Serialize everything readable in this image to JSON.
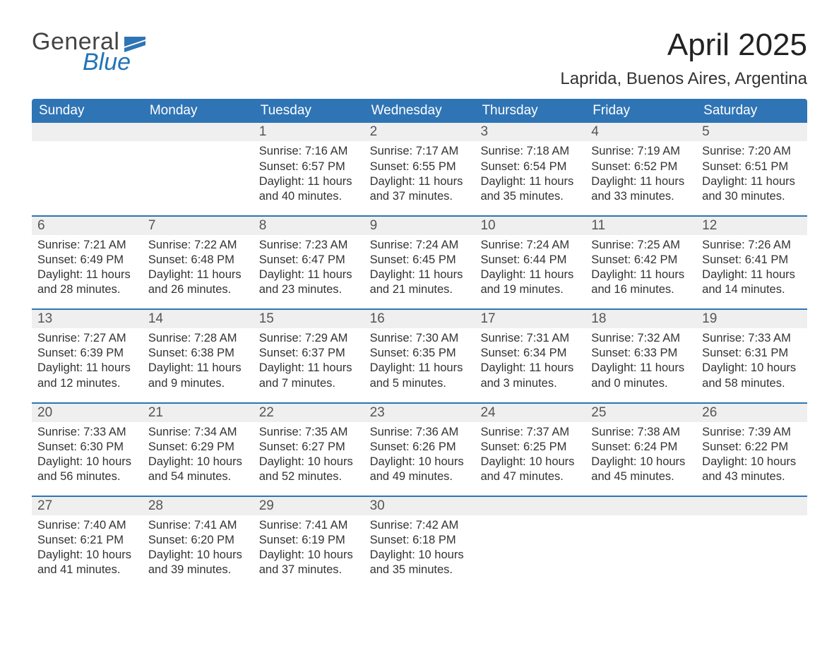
{
  "logo": {
    "word1": "General",
    "word2": "Blue",
    "color1": "#444444",
    "color2": "#2173b8"
  },
  "title": {
    "month": "April 2025",
    "location": "Laprida, Buenos Aires, Argentina"
  },
  "colors": {
    "header_bg": "#2f74b5",
    "header_text": "#ffffff",
    "daynum_bg": "#efefef",
    "week_border": "#2f74b5",
    "page_bg": "#ffffff"
  },
  "daynames": [
    "Sunday",
    "Monday",
    "Tuesday",
    "Wednesday",
    "Thursday",
    "Friday",
    "Saturday"
  ],
  "weeks": [
    [
      {
        "num": "",
        "lines": [
          "",
          "",
          "",
          ""
        ]
      },
      {
        "num": "",
        "lines": [
          "",
          "",
          "",
          ""
        ]
      },
      {
        "num": "1",
        "lines": [
          "Sunrise: 7:16 AM",
          "Sunset: 6:57 PM",
          "Daylight: 11 hours",
          "and 40 minutes."
        ]
      },
      {
        "num": "2",
        "lines": [
          "Sunrise: 7:17 AM",
          "Sunset: 6:55 PM",
          "Daylight: 11 hours",
          "and 37 minutes."
        ]
      },
      {
        "num": "3",
        "lines": [
          "Sunrise: 7:18 AM",
          "Sunset: 6:54 PM",
          "Daylight: 11 hours",
          "and 35 minutes."
        ]
      },
      {
        "num": "4",
        "lines": [
          "Sunrise: 7:19 AM",
          "Sunset: 6:52 PM",
          "Daylight: 11 hours",
          "and 33 minutes."
        ]
      },
      {
        "num": "5",
        "lines": [
          "Sunrise: 7:20 AM",
          "Sunset: 6:51 PM",
          "Daylight: 11 hours",
          "and 30 minutes."
        ]
      }
    ],
    [
      {
        "num": "6",
        "lines": [
          "Sunrise: 7:21 AM",
          "Sunset: 6:49 PM",
          "Daylight: 11 hours",
          "and 28 minutes."
        ]
      },
      {
        "num": "7",
        "lines": [
          "Sunrise: 7:22 AM",
          "Sunset: 6:48 PM",
          "Daylight: 11 hours",
          "and 26 minutes."
        ]
      },
      {
        "num": "8",
        "lines": [
          "Sunrise: 7:23 AM",
          "Sunset: 6:47 PM",
          "Daylight: 11 hours",
          "and 23 minutes."
        ]
      },
      {
        "num": "9",
        "lines": [
          "Sunrise: 7:24 AM",
          "Sunset: 6:45 PM",
          "Daylight: 11 hours",
          "and 21 minutes."
        ]
      },
      {
        "num": "10",
        "lines": [
          "Sunrise: 7:24 AM",
          "Sunset: 6:44 PM",
          "Daylight: 11 hours",
          "and 19 minutes."
        ]
      },
      {
        "num": "11",
        "lines": [
          "Sunrise: 7:25 AM",
          "Sunset: 6:42 PM",
          "Daylight: 11 hours",
          "and 16 minutes."
        ]
      },
      {
        "num": "12",
        "lines": [
          "Sunrise: 7:26 AM",
          "Sunset: 6:41 PM",
          "Daylight: 11 hours",
          "and 14 minutes."
        ]
      }
    ],
    [
      {
        "num": "13",
        "lines": [
          "Sunrise: 7:27 AM",
          "Sunset: 6:39 PM",
          "Daylight: 11 hours",
          "and 12 minutes."
        ]
      },
      {
        "num": "14",
        "lines": [
          "Sunrise: 7:28 AM",
          "Sunset: 6:38 PM",
          "Daylight: 11 hours",
          "and 9 minutes."
        ]
      },
      {
        "num": "15",
        "lines": [
          "Sunrise: 7:29 AM",
          "Sunset: 6:37 PM",
          "Daylight: 11 hours",
          "and 7 minutes."
        ]
      },
      {
        "num": "16",
        "lines": [
          "Sunrise: 7:30 AM",
          "Sunset: 6:35 PM",
          "Daylight: 11 hours",
          "and 5 minutes."
        ]
      },
      {
        "num": "17",
        "lines": [
          "Sunrise: 7:31 AM",
          "Sunset: 6:34 PM",
          "Daylight: 11 hours",
          "and 3 minutes."
        ]
      },
      {
        "num": "18",
        "lines": [
          "Sunrise: 7:32 AM",
          "Sunset: 6:33 PM",
          "Daylight: 11 hours",
          "and 0 minutes."
        ]
      },
      {
        "num": "19",
        "lines": [
          "Sunrise: 7:33 AM",
          "Sunset: 6:31 PM",
          "Daylight: 10 hours",
          "and 58 minutes."
        ]
      }
    ],
    [
      {
        "num": "20",
        "lines": [
          "Sunrise: 7:33 AM",
          "Sunset: 6:30 PM",
          "Daylight: 10 hours",
          "and 56 minutes."
        ]
      },
      {
        "num": "21",
        "lines": [
          "Sunrise: 7:34 AM",
          "Sunset: 6:29 PM",
          "Daylight: 10 hours",
          "and 54 minutes."
        ]
      },
      {
        "num": "22",
        "lines": [
          "Sunrise: 7:35 AM",
          "Sunset: 6:27 PM",
          "Daylight: 10 hours",
          "and 52 minutes."
        ]
      },
      {
        "num": "23",
        "lines": [
          "Sunrise: 7:36 AM",
          "Sunset: 6:26 PM",
          "Daylight: 10 hours",
          "and 49 minutes."
        ]
      },
      {
        "num": "24",
        "lines": [
          "Sunrise: 7:37 AM",
          "Sunset: 6:25 PM",
          "Daylight: 10 hours",
          "and 47 minutes."
        ]
      },
      {
        "num": "25",
        "lines": [
          "Sunrise: 7:38 AM",
          "Sunset: 6:24 PM",
          "Daylight: 10 hours",
          "and 45 minutes."
        ]
      },
      {
        "num": "26",
        "lines": [
          "Sunrise: 7:39 AM",
          "Sunset: 6:22 PM",
          "Daylight: 10 hours",
          "and 43 minutes."
        ]
      }
    ],
    [
      {
        "num": "27",
        "lines": [
          "Sunrise: 7:40 AM",
          "Sunset: 6:21 PM",
          "Daylight: 10 hours",
          "and 41 minutes."
        ]
      },
      {
        "num": "28",
        "lines": [
          "Sunrise: 7:41 AM",
          "Sunset: 6:20 PM",
          "Daylight: 10 hours",
          "and 39 minutes."
        ]
      },
      {
        "num": "29",
        "lines": [
          "Sunrise: 7:41 AM",
          "Sunset: 6:19 PM",
          "Daylight: 10 hours",
          "and 37 minutes."
        ]
      },
      {
        "num": "30",
        "lines": [
          "Sunrise: 7:42 AM",
          "Sunset: 6:18 PM",
          "Daylight: 10 hours",
          "and 35 minutes."
        ]
      },
      {
        "num": "",
        "lines": [
          "",
          "",
          "",
          ""
        ]
      },
      {
        "num": "",
        "lines": [
          "",
          "",
          "",
          ""
        ]
      },
      {
        "num": "",
        "lines": [
          "",
          "",
          "",
          ""
        ]
      }
    ]
  ]
}
